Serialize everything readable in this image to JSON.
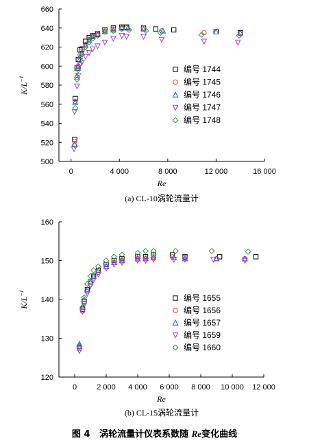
{
  "figure_caption": {
    "prefix": "图 4",
    "text1": "涡轮流量计仪表系数随 ",
    "re": "Re",
    "text2": "变化曲线"
  },
  "chart_data": [
    {
      "type": "scatter",
      "caption": "(a) CL-10涡轮流量计",
      "xlabel": "Re",
      "ylabel_main": "K",
      "ylabel_rest": "/L",
      "ylabel_sup": "−1",
      "xlim": [
        -1000,
        16000
      ],
      "ylim": [
        500,
        660
      ],
      "xticks": [
        0,
        4000,
        8000,
        12000,
        16000
      ],
      "xtick_labels": [
        "0",
        "4 000",
        "8 000",
        "12 000",
        "16 000"
      ],
      "yticks": [
        500,
        520,
        540,
        560,
        580,
        600,
        620,
        640,
        660
      ],
      "ytick_labels": [
        "500",
        "520",
        "540",
        "560",
        "580",
        "600",
        "620",
        "640",
        "660"
      ],
      "legend_position": "right",
      "series": [
        {
          "name": "编号 1744",
          "marker": "square",
          "color": "#000000",
          "x": [
            300,
            350,
            500,
            600,
            750,
            900,
            1200,
            1500,
            1800,
            2200,
            2800,
            3500,
            4200,
            4600,
            6000,
            7000,
            8500,
            12000,
            14000
          ],
          "y": [
            523,
            566,
            598,
            607,
            617,
            618,
            626,
            630,
            632,
            634,
            638,
            640,
            641,
            641,
            640,
            639,
            638,
            636,
            635
          ]
        },
        {
          "name": "编号 1745",
          "marker": "circle",
          "color": "#e0413b",
          "x": [
            300,
            350,
            500,
            600,
            750,
            900,
            1200,
            1500,
            1800,
            2200,
            2800,
            3500,
            4200,
            4600,
            6000,
            7500,
            11000,
            14000
          ],
          "y": [
            521,
            563,
            588,
            600,
            612,
            616,
            623,
            628,
            631,
            633,
            637,
            639,
            640,
            640,
            640,
            637,
            635,
            634
          ]
        },
        {
          "name": "编号 1746",
          "marker": "triangle-up",
          "color": "#2b4fd1",
          "x": [
            300,
            350,
            500,
            600,
            750,
            900,
            1200,
            1500,
            1800,
            2200,
            2800,
            3500,
            4200,
            4700,
            6000,
            7600,
            12000,
            14000
          ],
          "y": [
            518,
            562,
            590,
            600,
            610,
            614,
            622,
            627,
            631,
            633,
            636,
            638,
            640,
            640,
            639,
            637,
            636,
            635
          ]
        },
        {
          "name": "编号 1747",
          "marker": "triangle-down",
          "color": "#9c3fd8",
          "x": [
            250,
            300,
            500,
            600,
            750,
            900,
            1200,
            1500,
            1800,
            2200,
            2800,
            3500,
            4200,
            4600,
            6000,
            7500,
            11000,
            13800
          ],
          "y": [
            513,
            552,
            579,
            590,
            601,
            604,
            610,
            614,
            618,
            621,
            625,
            629,
            632,
            631,
            631,
            628,
            626,
            625
          ]
        },
        {
          "name": "编号 1748",
          "marker": "diamond",
          "color": "#2f9b3a",
          "x": [
            300,
            350,
            500,
            600,
            750,
            900,
            1200,
            1500,
            1800,
            2200,
            2800,
            3500,
            4200,
            4800,
            6200,
            7400,
            10800,
            13900
          ],
          "y": [
            517,
            556,
            586,
            596,
            606,
            612,
            620,
            625,
            629,
            632,
            636,
            637,
            639,
            638,
            637,
            635,
            633,
            632
          ]
        }
      ]
    },
    {
      "type": "scatter",
      "caption": "(b) CL-15涡轮流量计",
      "xlabel": "Re",
      "ylabel_main": "K",
      "ylabel_rest": "/L",
      "ylabel_sup": "−1",
      "xlim": [
        -1000,
        12000
      ],
      "ylim": [
        120,
        160
      ],
      "xticks": [
        0,
        2000,
        4000,
        6000,
        8000,
        10000,
        12000
      ],
      "xtick_labels": [
        "0",
        "2 000",
        "4 000",
        "6 000",
        "8 000",
        "10 000",
        "12 000"
      ],
      "yticks": [
        120,
        130,
        140,
        150,
        160
      ],
      "ytick_labels": [
        "120",
        "130",
        "140",
        "150",
        "160"
      ],
      "legend_position": "right",
      "series": [
        {
          "name": "编号 1655",
          "marker": "square",
          "color": "#000000",
          "x": [
            300,
            500,
            600,
            800,
            1000,
            1200,
            1500,
            2000,
            2500,
            3000,
            4000,
            4500,
            5000,
            6200,
            7000,
            9200,
            11500
          ],
          "y": [
            127.5,
            137.5,
            139.5,
            142.5,
            144.5,
            146,
            147.5,
            149,
            150,
            150.5,
            151,
            151,
            151.5,
            151.5,
            151,
            151,
            151
          ]
        },
        {
          "name": "编号 1656",
          "marker": "circle",
          "color": "#e0413b",
          "x": [
            300,
            500,
            600,
            800,
            1000,
            1200,
            1500,
            2000,
            2500,
            3000,
            4000,
            4500,
            5000,
            6200,
            7000,
            9000,
            10800
          ],
          "y": [
            127.8,
            137,
            139,
            142,
            144,
            145.5,
            147,
            148.5,
            149.5,
            150,
            150.5,
            150.5,
            151,
            151,
            150.8,
            150.5,
            150.5
          ]
        },
        {
          "name": "编号 1657",
          "marker": "triangle-up",
          "color": "#2b4fd1",
          "x": [
            300,
            500,
            600,
            800,
            1000,
            1200,
            1500,
            2000,
            2500,
            3000,
            4000,
            4500,
            5000,
            6300,
            7000,
            9000,
            10800
          ],
          "y": [
            128.5,
            138,
            140,
            142.5,
            144.5,
            146,
            147.5,
            148.5,
            149.5,
            150,
            150.5,
            150.5,
            150.8,
            150.8,
            150.5,
            150.5,
            150.5
          ]
        },
        {
          "name": "编号 1659",
          "marker": "triangle-down",
          "color": "#9c3fd8",
          "x": [
            300,
            500,
            600,
            800,
            1000,
            1200,
            1500,
            2000,
            2500,
            3000,
            4000,
            4500,
            5000,
            6300,
            7000,
            8800,
            10800
          ],
          "y": [
            126.8,
            137,
            139,
            141.5,
            143.5,
            145,
            146.5,
            148,
            149,
            149.5,
            150,
            150,
            150.3,
            150.3,
            150.3,
            150.3,
            150
          ]
        },
        {
          "name": "编号 1660",
          "marker": "diamond",
          "color": "#2f9b3a",
          "x": [
            300,
            500,
            600,
            800,
            1000,
            1200,
            1500,
            2000,
            2500,
            3000,
            4000,
            4500,
            5000,
            6400,
            8700,
            11000
          ],
          "y": [
            128,
            138,
            140.5,
            144,
            146,
            147.5,
            148.5,
            150,
            151,
            151.5,
            152,
            152.5,
            152.5,
            152.5,
            152.5,
            152.3
          ]
        }
      ]
    }
  ]
}
